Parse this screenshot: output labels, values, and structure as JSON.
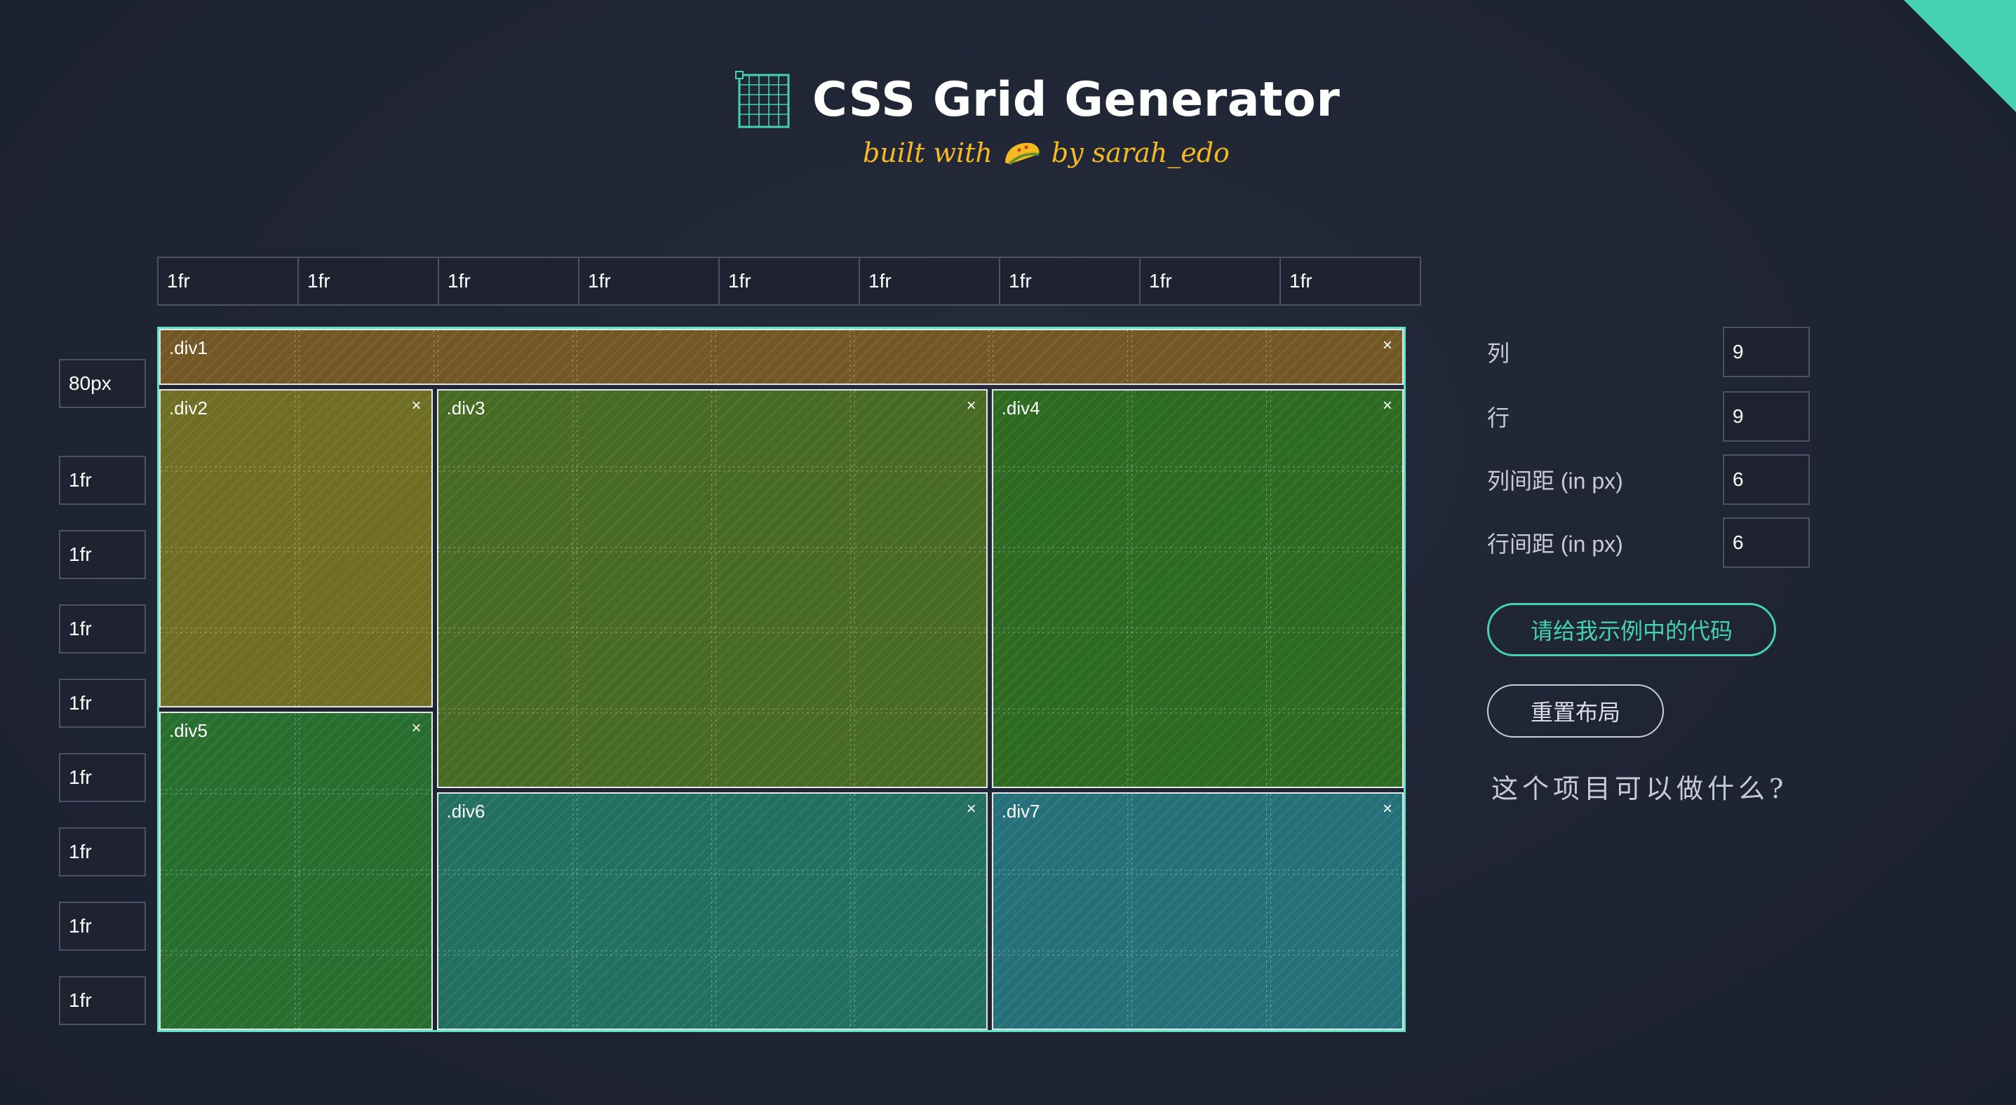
{
  "header": {
    "title": "CSS Grid Generator",
    "subtitle_prefix": "built with",
    "subtitle_suffix": "by sarah_edo"
  },
  "columns": [
    "1fr",
    "1fr",
    "1fr",
    "1fr",
    "1fr",
    "1fr",
    "1fr",
    "1fr",
    "1fr"
  ],
  "rows": [
    "80px",
    "1fr",
    "1fr",
    "1fr",
    "1fr",
    "1fr",
    "1fr",
    "1fr",
    "1fr"
  ],
  "grid_items": [
    {
      "label": ".div1",
      "close": "×",
      "color": "#735826"
    },
    {
      "label": ".div2",
      "close": "×",
      "color": "#6f6e23"
    },
    {
      "label": ".div3",
      "close": "×",
      "color": "#486b23"
    },
    {
      "label": ".div4",
      "close": "×",
      "color": "#2c6b21"
    },
    {
      "label": ".div5",
      "close": "×",
      "color": "#286e2e"
    },
    {
      "label": ".div6",
      "close": "×",
      "color": "#237062"
    },
    {
      "label": ".div7",
      "close": "×",
      "color": "#26707a"
    }
  ],
  "settings": {
    "columns_label": "列",
    "columns_value": "9",
    "rows_label": "行",
    "rows_value": "9",
    "column_gap_label": "列间距 (in px)",
    "column_gap_value": "6",
    "row_gap_label": "行间距 (in px)",
    "row_gap_value": "6"
  },
  "buttons": {
    "show_code": "请给我示例中的代码",
    "reset": "重置布局"
  },
  "faq_link": "这个项目可以做什么?",
  "colors": {
    "accent": "#44d1b4",
    "background": "#1f2433",
    "grid_border": "#5fe3c6",
    "subtitle": "#f5b921"
  }
}
